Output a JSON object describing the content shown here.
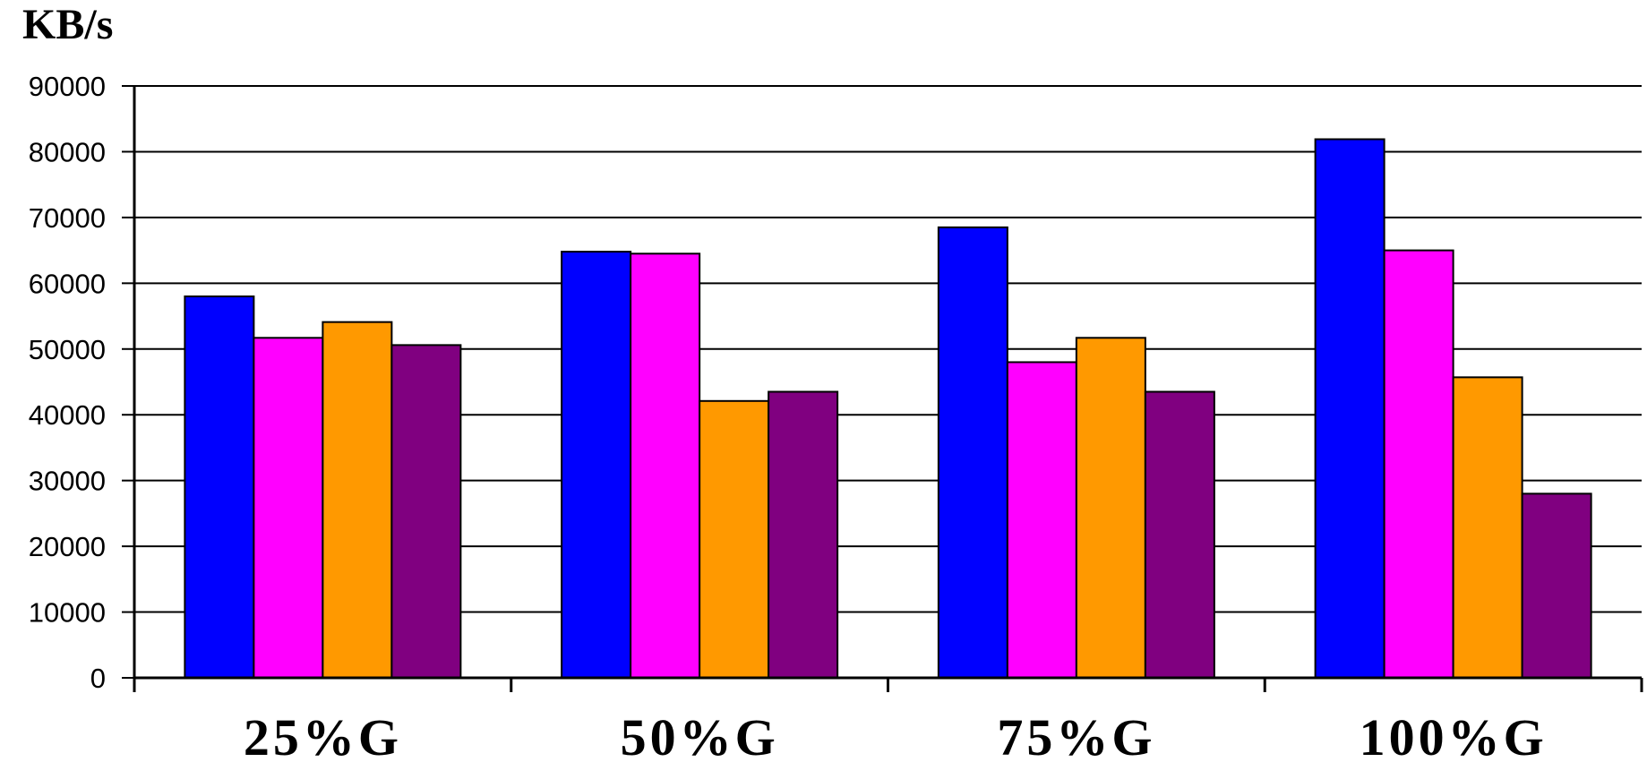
{
  "chart_data": {
    "type": "bar",
    "title": "",
    "xlabel": "",
    "ylabel": "KB/s",
    "ylim": [
      0,
      90000
    ],
    "yticks": [
      "0",
      "10000",
      "20000",
      "30000",
      "40000",
      "50000",
      "60000",
      "70000",
      "80000",
      "90000"
    ],
    "grid": true,
    "categories": [
      "25%G",
      "50%G",
      "75%G",
      "100%G"
    ],
    "series": [
      {
        "color": "#0000ff",
        "values": [
          58000,
          64800,
          68500,
          81900
        ]
      },
      {
        "color": "#ff00ff",
        "values": [
          51700,
          64500,
          48000,
          65000
        ]
      },
      {
        "color": "#ff9900",
        "values": [
          54100,
          42100,
          51700,
          45700
        ]
      },
      {
        "color": "#800080",
        "values": [
          50600,
          43500,
          43500,
          28000
        ]
      }
    ]
  }
}
